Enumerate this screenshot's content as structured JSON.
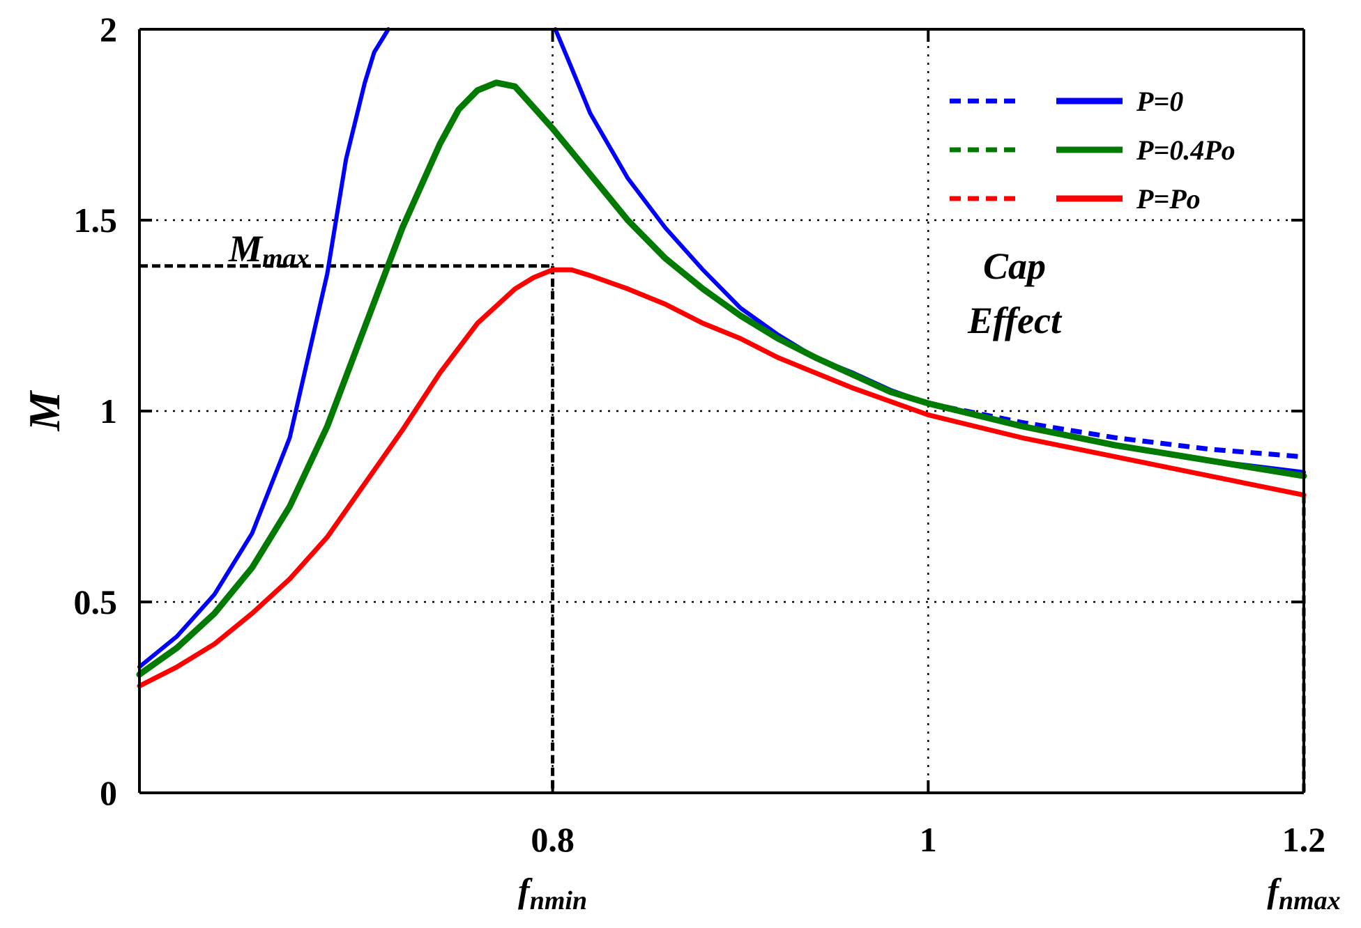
{
  "chart_data": {
    "type": "line",
    "title": "",
    "xlabel": "",
    "ylabel": "M",
    "xlim": [
      0.58,
      1.2
    ],
    "ylim": [
      0,
      2
    ],
    "x_ticks": [
      {
        "value": 0.8,
        "label": "0.8",
        "sub_main": "f",
        "sub_sub": "nmin"
      },
      {
        "value": 1.0,
        "label": "1",
        "sub_main": "",
        "sub_sub": ""
      },
      {
        "value": 1.2,
        "label": "1.2",
        "sub_main": "f",
        "sub_sub": "nmax"
      }
    ],
    "y_ticks": [
      {
        "value": 0,
        "label": "0"
      },
      {
        "value": 0.5,
        "label": "0.5"
      },
      {
        "value": 1,
        "label": "1"
      },
      {
        "value": 1.5,
        "label": "1.5"
      },
      {
        "value": 2,
        "label": "2"
      }
    ],
    "grid": "dotted",
    "legend_position": "top-right",
    "series": [
      {
        "name": "P=0",
        "color": "#0000ff",
        "width": 6,
        "x": [
          0.58,
          0.6,
          0.62,
          0.64,
          0.66,
          0.68,
          0.69,
          0.7,
          0.705,
          0.71,
          0.7125
        ],
        "y": [
          0.33,
          0.41,
          0.52,
          0.68,
          0.93,
          1.36,
          1.66,
          1.86,
          1.94,
          1.98,
          2.0
        ],
        "x2": [
          0.8015,
          0.81,
          0.82,
          0.84,
          0.86,
          0.88,
          0.9,
          0.92,
          0.94,
          0.96,
          0.98,
          1.0,
          1.05,
          1.1,
          1.15,
          1.2
        ],
        "y2": [
          2.0,
          1.9,
          1.78,
          1.61,
          1.48,
          1.37,
          1.27,
          1.2,
          1.14,
          1.1,
          1.055,
          1.02,
          0.96,
          0.91,
          0.87,
          0.84
        ]
      },
      {
        "name": "P=0.4Po",
        "color": "#007a00",
        "width": 9,
        "x": [
          0.58,
          0.6,
          0.62,
          0.64,
          0.66,
          0.68,
          0.7,
          0.72,
          0.74,
          0.75,
          0.76,
          0.77,
          0.78,
          0.8,
          0.82,
          0.84,
          0.86,
          0.88,
          0.9,
          0.92,
          0.94,
          0.96,
          0.98,
          1.0,
          1.05,
          1.1,
          1.15,
          1.2
        ],
        "y": [
          0.31,
          0.38,
          0.47,
          0.59,
          0.75,
          0.96,
          1.22,
          1.48,
          1.7,
          1.79,
          1.84,
          1.86,
          1.85,
          1.74,
          1.62,
          1.5,
          1.4,
          1.32,
          1.25,
          1.19,
          1.14,
          1.095,
          1.05,
          1.02,
          0.96,
          0.91,
          0.87,
          0.83
        ]
      },
      {
        "name": "P=Po",
        "color": "#ff0000",
        "width": 7,
        "x": [
          0.58,
          0.6,
          0.62,
          0.64,
          0.66,
          0.68,
          0.7,
          0.72,
          0.74,
          0.76,
          0.78,
          0.79,
          0.8,
          0.81,
          0.82,
          0.84,
          0.86,
          0.88,
          0.9,
          0.92,
          0.94,
          0.96,
          0.98,
          1.0,
          1.05,
          1.1,
          1.15,
          1.2
        ],
        "y": [
          0.28,
          0.33,
          0.39,
          0.47,
          0.56,
          0.67,
          0.81,
          0.95,
          1.1,
          1.23,
          1.32,
          1.35,
          1.37,
          1.37,
          1.355,
          1.32,
          1.28,
          1.23,
          1.19,
          1.14,
          1.1,
          1.06,
          1.025,
          0.99,
          0.93,
          0.88,
          0.83,
          0.78
        ]
      },
      {
        "name": "P=0 (dashed)",
        "color": "#0000ff",
        "width": 7,
        "dash": true,
        "x": [
          1.0,
          1.05,
          1.1,
          1.15,
          1.2
        ],
        "y": [
          1.02,
          0.97,
          0.93,
          0.9,
          0.88
        ]
      },
      {
        "name": "P=0.4Po (dashed)",
        "color": "#007a00",
        "width": 7,
        "dash": true,
        "x": [
          1.0,
          1.05,
          1.1,
          1.15,
          1.2
        ],
        "y": [
          1.02,
          0.96,
          0.91,
          0.87,
          0.83
        ]
      }
    ],
    "legend": [
      {
        "label": "P=0",
        "color": "#0000ff"
      },
      {
        "label": "P=0.4Po",
        "color": "#007a00"
      },
      {
        "label": "P=Po",
        "color": "#ff0000"
      }
    ],
    "annotations": {
      "mmax_main": "M",
      "mmax_sub": "max",
      "mmax_value": 1.38,
      "fnmin_value": 0.8,
      "cap_line1": "Cap",
      "cap_line2": "Effect"
    }
  }
}
